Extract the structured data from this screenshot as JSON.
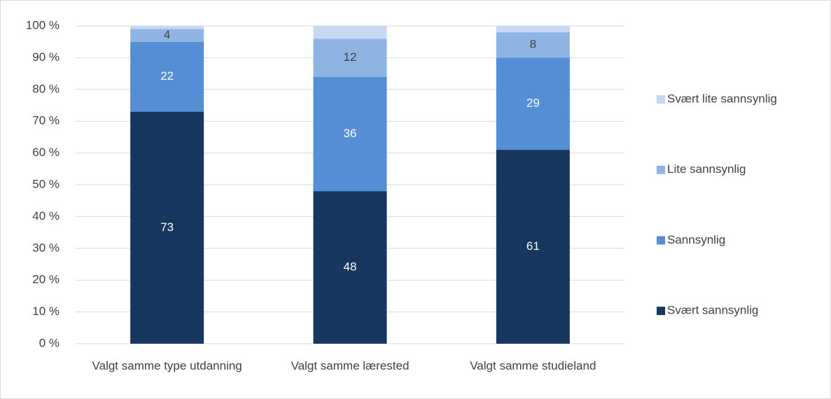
{
  "chart_data": {
    "type": "stacked_bar",
    "categories": [
      "Valgt samme type utdanning",
      "Valgt samme lærested",
      "Valgt samme studieland"
    ],
    "series": [
      {
        "name": "Svært sannsynlig",
        "color": "#17375e",
        "label_color": "#ffffff",
        "show_labels": true,
        "values": [
          73,
          48,
          61
        ]
      },
      {
        "name": "Sannsynlig",
        "color": "#558ed5",
        "label_color": "#ffffff",
        "show_labels": true,
        "values": [
          22,
          36,
          29
        ]
      },
      {
        "name": "Lite sannsynlig",
        "color": "#8eb4e3",
        "label_color": "#404040",
        "show_labels": true,
        "values": [
          4,
          12,
          8
        ]
      },
      {
        "name": "Svært lite sannsynlig",
        "color": "#c6d9f1",
        "label_color": "#404040",
        "show_labels": false,
        "values": [
          1,
          4,
          2
        ]
      }
    ],
    "ylim": [
      0,
      100
    ],
    "yticks": [
      {
        "value": 0,
        "label": "0 %"
      },
      {
        "value": 10,
        "label": "10 %"
      },
      {
        "value": 20,
        "label": "20 %"
      },
      {
        "value": 30,
        "label": "30 %"
      },
      {
        "value": 40,
        "label": "40 %"
      },
      {
        "value": 50,
        "label": "50 %"
      },
      {
        "value": 60,
        "label": "60 %"
      },
      {
        "value": 70,
        "label": "70 %"
      },
      {
        "value": 80,
        "label": "80 %"
      },
      {
        "value": 90,
        "label": "90 %"
      },
      {
        "value": 100,
        "label": "100 %"
      }
    ],
    "grid": true,
    "legend": "right"
  }
}
